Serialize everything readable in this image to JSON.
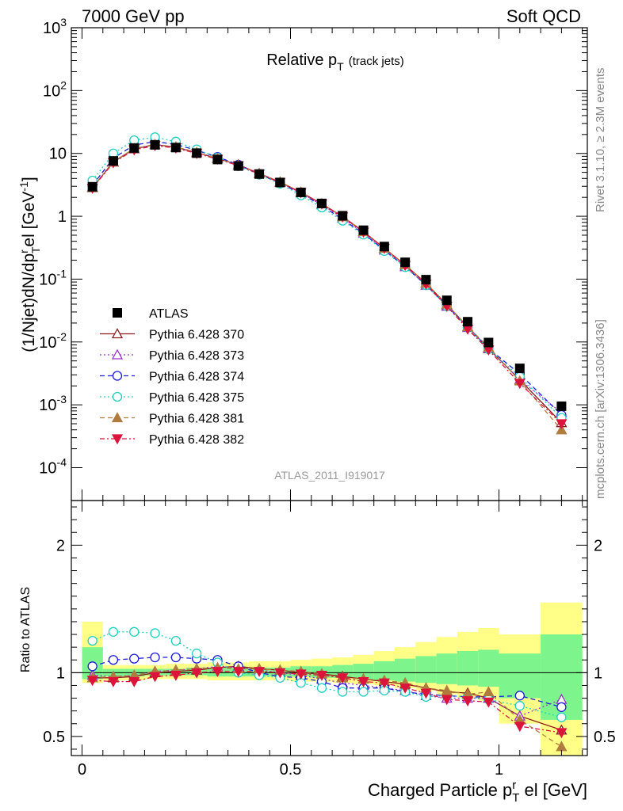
{
  "header": {
    "left": "7000 GeV pp",
    "right": "Soft QCD"
  },
  "side": {
    "rivet": "Rivet 3.1.10, ≥ 2.3M events",
    "mcplots": "mcplots.cern.ch [arXiv:1306.3436]"
  },
  "analysis_id": "ATLAS_2011_I919017",
  "colors": {
    "data": "#000000",
    "band_inner": "#7ef58c",
    "band_outer": "#ffff88"
  },
  "chart_data": [
    {
      "panel": "main",
      "type": "scatter",
      "title": "Relative p_T",
      "title_parts": {
        "main": "Relative p",
        "sub": "T",
        "note": "(track jets)"
      },
      "ylabel": "(1/Njet)dN/dp^r_T el [GeV^-1]",
      "yscale": "log",
      "ylim": [
        3e-05,
        1000
      ],
      "xlim": [
        -0.02,
        1.22
      ],
      "yticks": [
        "10^-4",
        "10^-3",
        "10^-2",
        "10^-1",
        "1",
        "10",
        "10^2",
        "10^3"
      ],
      "legend_position": "lower-left",
      "x": [
        0.025,
        0.075,
        0.125,
        0.175,
        0.225,
        0.275,
        0.325,
        0.375,
        0.425,
        0.475,
        0.525,
        0.575,
        0.625,
        0.675,
        0.725,
        0.775,
        0.825,
        0.875,
        0.925,
        0.975,
        1.05,
        1.15
      ],
      "data": {
        "name": "ATLAS",
        "values": [
          2.95,
          7.6,
          12.2,
          13.7,
          12.4,
          10.1,
          8.0,
          6.3,
          4.7,
          3.45,
          2.4,
          1.6,
          1.02,
          0.6,
          0.33,
          0.185,
          0.098,
          0.046,
          0.021,
          0.0098,
          0.0038,
          0.00095
        ]
      },
      "series": [
        {
          "name": "Pythia 6.428 370",
          "color": "#8b1a1a",
          "dash": "",
          "marker": "triangle-open",
          "values": [
            2.85,
            7.3,
            11.8,
            13.8,
            12.5,
            10.3,
            8.3,
            6.6,
            4.8,
            3.5,
            2.4,
            1.58,
            0.99,
            0.57,
            0.31,
            0.168,
            0.086,
            0.039,
            0.0175,
            0.0078,
            0.0025,
            0.00052
          ]
        },
        {
          "name": "Pythia 6.428 373",
          "color": "#9932cc",
          "dash": "2,3",
          "marker": "triangle-open",
          "values": [
            2.9,
            7.4,
            11.9,
            13.9,
            12.6,
            10.4,
            8.4,
            6.5,
            4.8,
            3.45,
            2.35,
            1.52,
            0.94,
            0.54,
            0.29,
            0.158,
            0.08,
            0.037,
            0.017,
            0.0079,
            0.0025,
            0.00075
          ]
        },
        {
          "name": "Pythia 6.428 374",
          "color": "#1c1cd8",
          "dash": "6,4",
          "marker": "circle-open",
          "values": [
            3.1,
            8.4,
            13.6,
            15.4,
            13.9,
            11.2,
            8.8,
            6.6,
            4.7,
            3.35,
            2.3,
            1.48,
            0.89,
            0.53,
            0.29,
            0.157,
            0.081,
            0.038,
            0.017,
            0.0079,
            0.0031,
            0.00069
          ]
        },
        {
          "name": "Pythia 6.428 375",
          "color": "#20d0c0",
          "dash": "2,3",
          "marker": "circle-open",
          "values": [
            3.7,
            10.0,
            16.2,
            18.1,
            15.4,
            11.6,
            8.6,
            6.3,
            4.6,
            3.3,
            2.15,
            1.38,
            0.85,
            0.51,
            0.28,
            0.155,
            0.08,
            0.037,
            0.017,
            0.0077,
            0.0028,
            0.00062
          ]
        },
        {
          "name": "Pythia 6.428 381",
          "color": "#b07c3e",
          "dash": "6,4",
          "marker": "triangle-filled",
          "values": [
            2.85,
            7.4,
            12.0,
            13.9,
            12.7,
            10.4,
            8.3,
            6.5,
            4.8,
            3.5,
            2.42,
            1.58,
            0.98,
            0.57,
            0.31,
            0.17,
            0.086,
            0.04,
            0.0175,
            0.0083,
            0.0024,
            0.0004
          ]
        },
        {
          "name": "Pythia 6.428 382",
          "color": "#dc143c",
          "dash": "6,3,2,3",
          "marker": "triangledown-filled",
          "values": [
            2.8,
            7.1,
            11.4,
            13.3,
            12.2,
            10.0,
            8.1,
            6.4,
            4.7,
            3.45,
            2.38,
            1.57,
            0.98,
            0.56,
            0.31,
            0.165,
            0.083,
            0.037,
            0.016,
            0.0075,
            0.0022,
            0.0005
          ]
        }
      ]
    },
    {
      "panel": "ratio",
      "type": "scatter",
      "ylabel": "Ratio to ATLAS",
      "xlabel": "Charged Particle p^r_T el [GeV]",
      "ylim": [
        0.35,
        2.35
      ],
      "xlim": [
        -0.02,
        1.22
      ],
      "yticks": [
        "0.5",
        "1",
        "2"
      ],
      "xticks": [
        "0",
        "0.5",
        "1"
      ],
      "bin_edges": [
        0.0,
        0.05,
        0.1,
        0.15,
        0.2,
        0.25,
        0.3,
        0.35,
        0.4,
        0.45,
        0.5,
        0.55,
        0.6,
        0.65,
        0.7,
        0.75,
        0.8,
        0.85,
        0.9,
        0.95,
        1.0,
        1.1,
        1.2
      ],
      "band_inner": [
        [
          0.95,
          1.2
        ],
        [
          0.97,
          1.03
        ],
        [
          0.97,
          1.03
        ],
        [
          0.98,
          1.03
        ],
        [
          0.98,
          1.03
        ],
        [
          0.98,
          1.04
        ],
        [
          0.97,
          1.04
        ],
        [
          0.97,
          1.04
        ],
        [
          0.97,
          1.04
        ],
        [
          0.97,
          1.04
        ],
        [
          0.97,
          1.05
        ],
        [
          0.96,
          1.05
        ],
        [
          0.96,
          1.06
        ],
        [
          0.95,
          1.07
        ],
        [
          0.94,
          1.09
        ],
        [
          0.93,
          1.11
        ],
        [
          0.92,
          1.13
        ],
        [
          0.91,
          1.15
        ],
        [
          0.9,
          1.17
        ],
        [
          0.89,
          1.18
        ],
        [
          0.8,
          1.15
        ],
        [
          0.63,
          1.3
        ]
      ],
      "band_outer": [
        [
          0.92,
          1.4
        ],
        [
          0.94,
          1.06
        ],
        [
          0.94,
          1.06
        ],
        [
          0.95,
          1.06
        ],
        [
          0.95,
          1.07
        ],
        [
          0.95,
          1.07
        ],
        [
          0.94,
          1.08
        ],
        [
          0.94,
          1.08
        ],
        [
          0.94,
          1.09
        ],
        [
          0.94,
          1.09
        ],
        [
          0.93,
          1.1
        ],
        [
          0.93,
          1.11
        ],
        [
          0.92,
          1.12
        ],
        [
          0.91,
          1.14
        ],
        [
          0.9,
          1.17
        ],
        [
          0.88,
          1.2
        ],
        [
          0.86,
          1.24
        ],
        [
          0.83,
          1.28
        ],
        [
          0.8,
          1.32
        ],
        [
          0.78,
          1.35
        ],
        [
          0.6,
          1.3
        ],
        [
          0.35,
          1.55
        ]
      ],
      "series": [
        {
          "name": "Pythia 6.428 370",
          "values": [
            0.96,
            0.96,
            0.97,
            1.0,
            1.01,
            1.02,
            1.04,
            1.05,
            1.03,
            1.02,
            1.0,
            0.99,
            0.97,
            0.95,
            0.93,
            0.91,
            0.88,
            0.85,
            0.84,
            0.8,
            0.66,
            0.55
          ]
        },
        {
          "name": "Pythia 6.428 373",
          "values": [
            0.98,
            0.97,
            0.98,
            1.01,
            1.02,
            1.03,
            1.05,
            1.04,
            1.02,
            1.0,
            0.98,
            0.95,
            0.92,
            0.9,
            0.88,
            0.86,
            0.82,
            0.8,
            0.8,
            0.8,
            0.66,
            0.79
          ]
        },
        {
          "name": "Pythia 6.428 374",
          "values": [
            1.05,
            1.1,
            1.11,
            1.12,
            1.12,
            1.11,
            1.1,
            1.05,
            1.0,
            0.97,
            0.96,
            0.93,
            0.88,
            0.88,
            0.88,
            0.85,
            0.83,
            0.82,
            0.81,
            0.81,
            0.82,
            0.73
          ]
        },
        {
          "name": "Pythia 6.428 375",
          "values": [
            1.25,
            1.32,
            1.32,
            1.31,
            1.25,
            1.15,
            1.08,
            1.0,
            0.98,
            0.96,
            0.92,
            0.88,
            0.85,
            0.85,
            0.86,
            0.85,
            0.81,
            0.82,
            0.81,
            0.79,
            0.74,
            0.65
          ]
        },
        {
          "name": "Pythia 6.428 381",
          "values": [
            0.96,
            0.97,
            0.98,
            1.01,
            1.02,
            1.03,
            1.04,
            1.03,
            1.03,
            1.02,
            1.01,
            0.99,
            0.96,
            0.95,
            0.94,
            0.92,
            0.88,
            0.86,
            0.83,
            0.85,
            0.63,
            0.42
          ]
        },
        {
          "name": "Pythia 6.428 382",
          "values": [
            0.94,
            0.93,
            0.93,
            0.97,
            0.98,
            1.0,
            1.01,
            1.01,
            1.01,
            1.0,
            0.99,
            0.98,
            0.96,
            0.93,
            0.92,
            0.88,
            0.84,
            0.79,
            0.78,
            0.77,
            0.58,
            0.53
          ]
        }
      ]
    }
  ]
}
